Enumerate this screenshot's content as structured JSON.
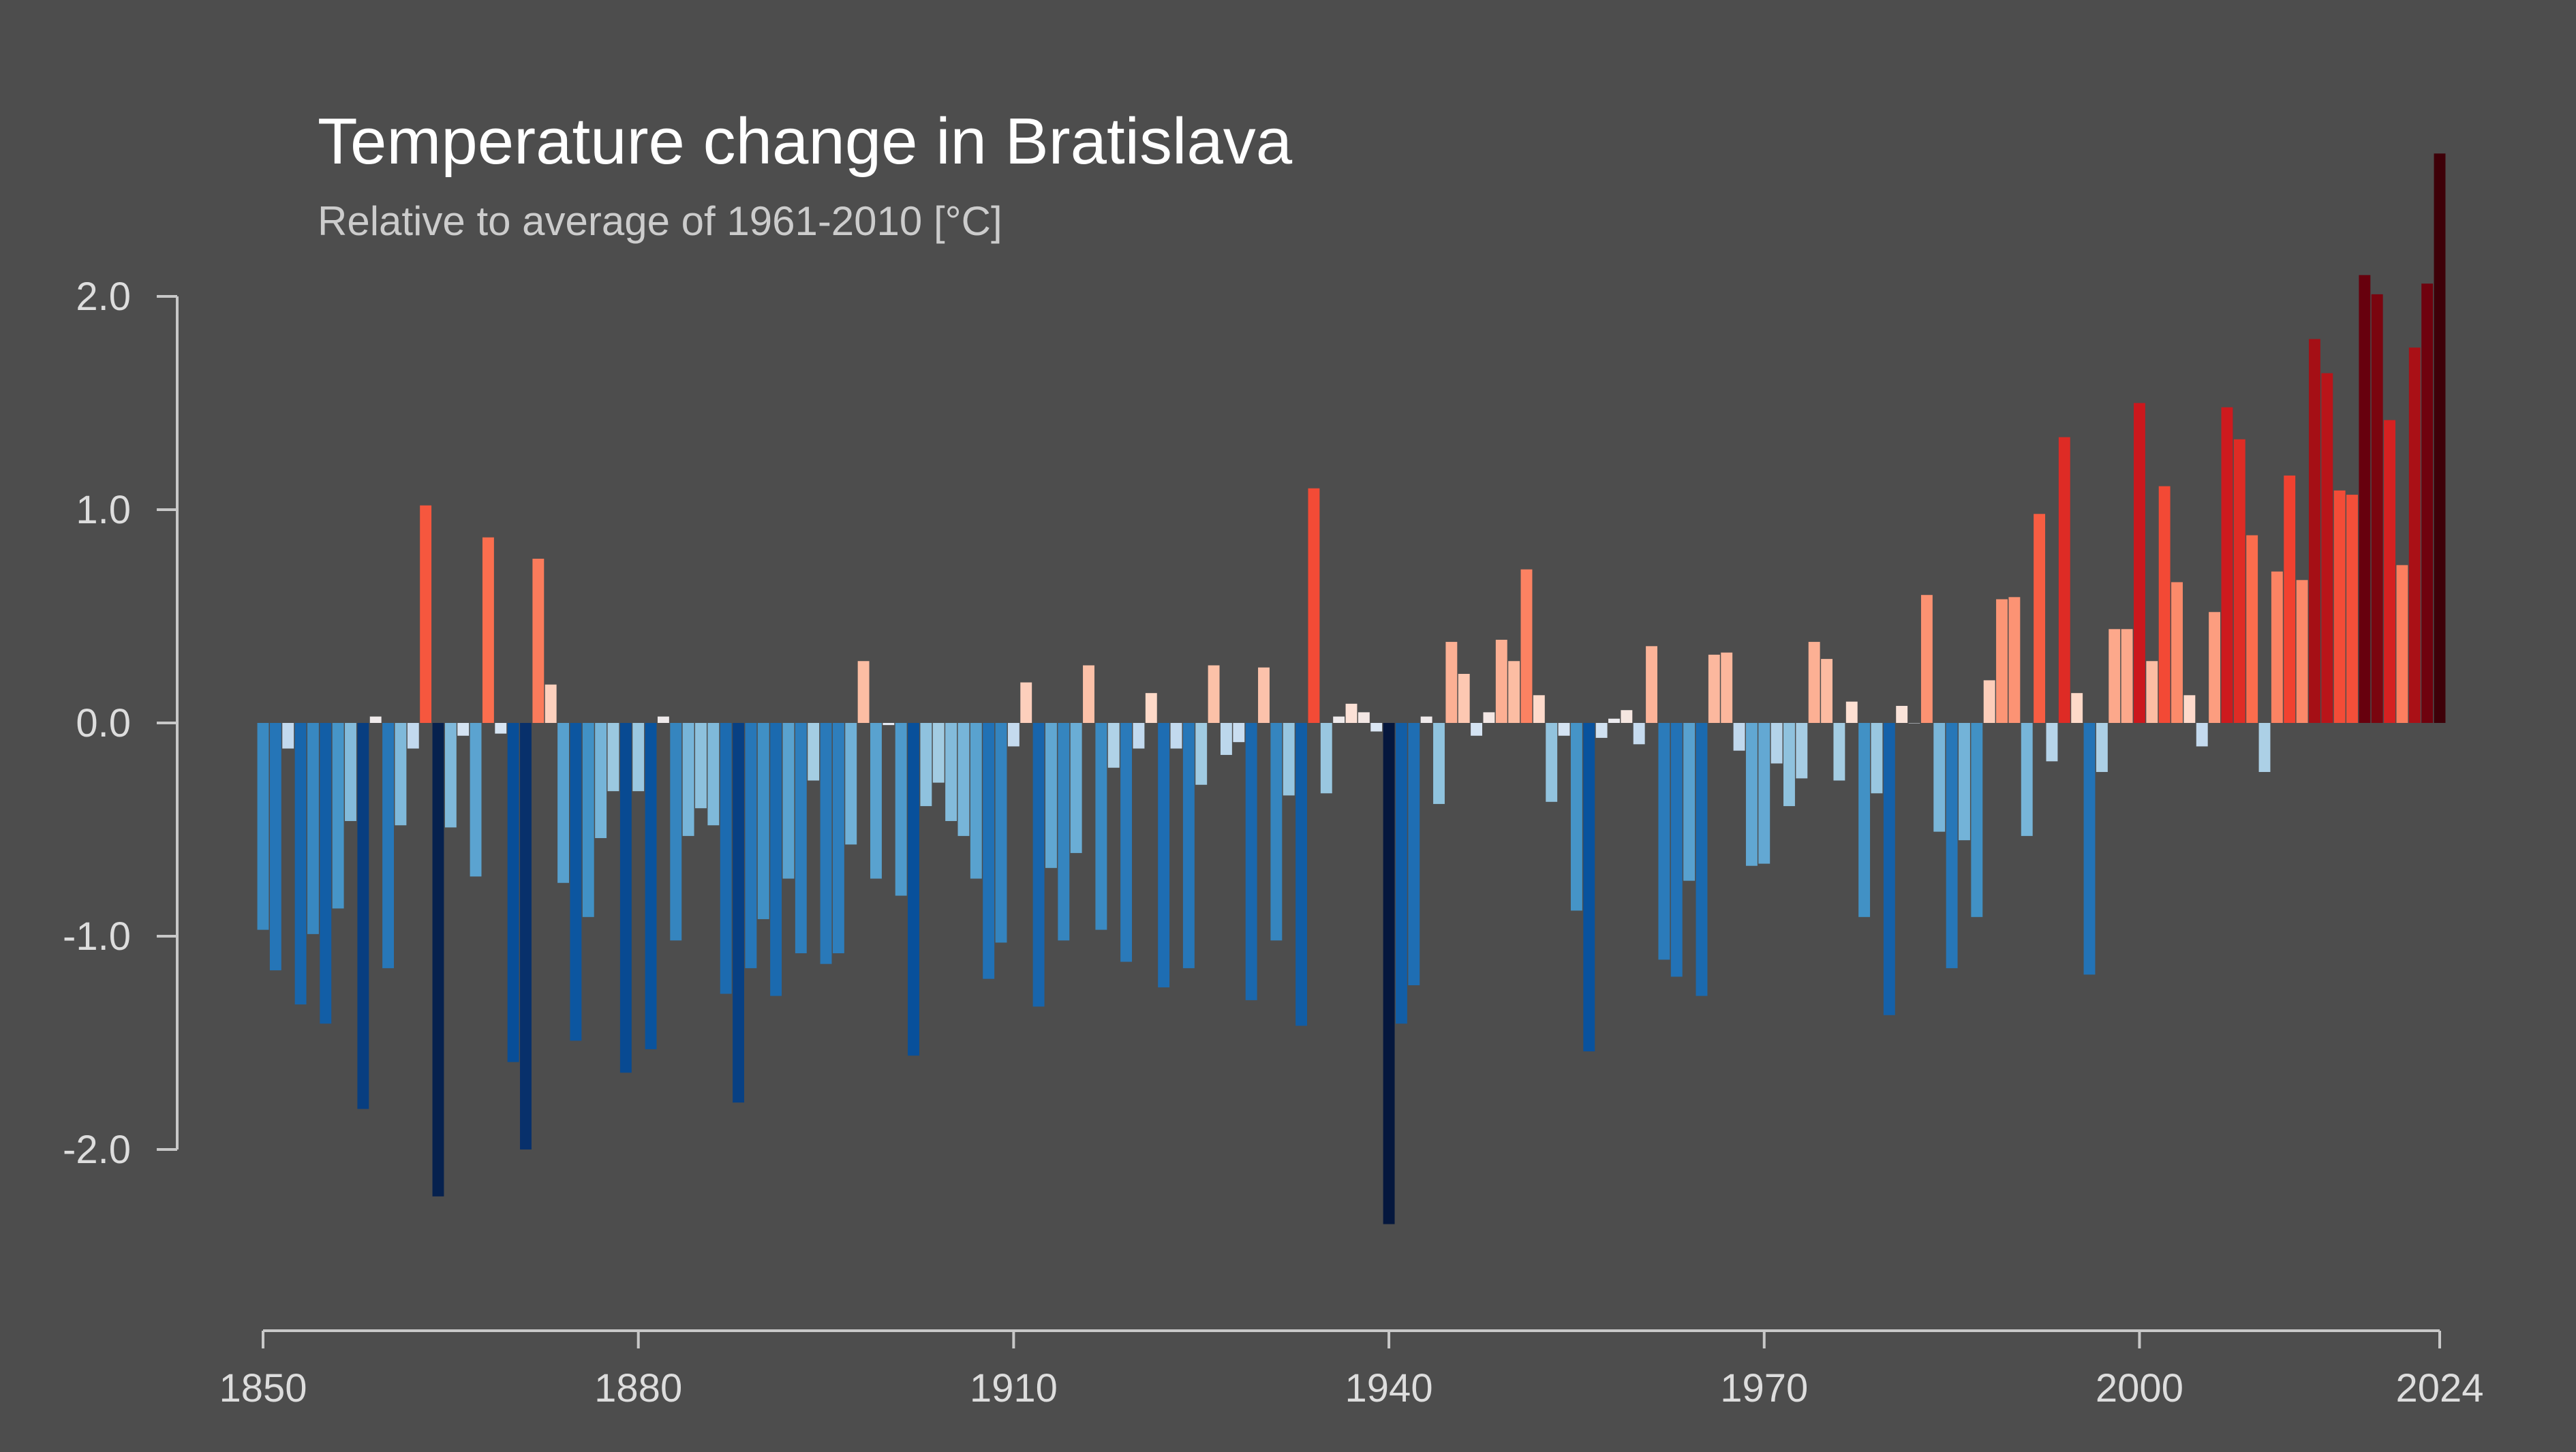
{
  "colors": {
    "background": "#4d4d4d",
    "axis": "#c8c8c8",
    "title": "#ffffff",
    "subtitle": "#cccccc",
    "tick_text": "#dddddd"
  },
  "chart_data": {
    "type": "bar",
    "title": "Temperature change in Bratislava",
    "subtitle": "Relative to average of 1961-2010  [°C]",
    "xlabel": "",
    "ylabel": "",
    "x_ticks": [
      "1850",
      "1880",
      "1910",
      "1940",
      "1970",
      "2000",
      "2024"
    ],
    "y_ticks": [
      "2.0",
      "1.0",
      "0.0",
      "-1.0",
      "-2.0"
    ],
    "ylim": [
      -2.9,
      2.7
    ],
    "xlim": [
      1850,
      2024
    ],
    "grid": false,
    "legend": "none",
    "color_scale": "diverging blue-white-red (ColorBrewer RdBu), darker blue = colder, darker red = warmer",
    "years": [
      1850,
      1851,
      1852,
      1853,
      1854,
      1855,
      1856,
      1857,
      1858,
      1859,
      1860,
      1861,
      1862,
      1863,
      1864,
      1865,
      1866,
      1867,
      1868,
      1869,
      1870,
      1871,
      1872,
      1873,
      1874,
      1875,
      1876,
      1877,
      1878,
      1879,
      1880,
      1881,
      1882,
      1883,
      1884,
      1885,
      1886,
      1887,
      1888,
      1889,
      1890,
      1891,
      1892,
      1893,
      1894,
      1895,
      1896,
      1897,
      1898,
      1899,
      1900,
      1901,
      1902,
      1903,
      1904,
      1905,
      1906,
      1907,
      1908,
      1909,
      1910,
      1911,
      1912,
      1913,
      1914,
      1915,
      1916,
      1917,
      1918,
      1919,
      1920,
      1921,
      1922,
      1923,
      1924,
      1925,
      1926,
      1927,
      1928,
      1929,
      1930,
      1931,
      1932,
      1933,
      1934,
      1935,
      1936,
      1937,
      1938,
      1939,
      1940,
      1941,
      1942,
      1943,
      1944,
      1945,
      1946,
      1947,
      1948,
      1949,
      1950,
      1951,
      1952,
      1953,
      1954,
      1955,
      1956,
      1957,
      1958,
      1959,
      1960,
      1961,
      1962,
      1963,
      1964,
      1965,
      1966,
      1967,
      1968,
      1969,
      1970,
      1971,
      1972,
      1973,
      1974,
      1975,
      1976,
      1977,
      1978,
      1979,
      1980,
      1981,
      1982,
      1983,
      1984,
      1985,
      1986,
      1987,
      1988,
      1989,
      1990,
      1991,
      1992,
      1993,
      1994,
      1995,
      1996,
      1997,
      1998,
      1999,
      2000,
      2001,
      2002,
      2003,
      2004,
      2005,
      2006,
      2007,
      2008,
      2009,
      2010,
      2011,
      2012,
      2013,
      2014,
      2015,
      2016,
      2017,
      2018,
      2019,
      2020,
      2021,
      2022,
      2023,
      2024
    ],
    "values": [
      -0.97,
      -1.16,
      -0.12,
      -1.32,
      -0.99,
      -1.41,
      -0.87,
      -0.46,
      -1.81,
      0.03,
      -1.15,
      -0.48,
      -0.12,
      1.02,
      -2.22,
      -0.49,
      -0.06,
      -0.72,
      0.87,
      -0.05,
      -1.59,
      -2.0,
      0.77,
      0.18,
      -0.75,
      -1.49,
      -0.91,
      -0.54,
      -0.32,
      -1.64,
      -0.32,
      -1.53,
      0.03,
      -1.02,
      -0.53,
      -0.4,
      -0.48,
      -1.27,
      -1.78,
      -1.15,
      -0.92,
      -1.28,
      -0.73,
      -1.08,
      -0.27,
      -1.13,
      -1.08,
      -0.57,
      0.29,
      -0.73,
      -0.01,
      -0.81,
      -1.56,
      -0.39,
      -0.28,
      -0.46,
      -0.53,
      -0.73,
      -1.2,
      -1.03,
      -0.11,
      0.19,
      -1.33,
      -0.68,
      -1.02,
      -0.61,
      0.27,
      -0.97,
      -0.21,
      -1.12,
      -0.12,
      0.14,
      -1.24,
      -0.12,
      -1.15,
      -0.29,
      0.27,
      -0.15,
      -0.09,
      -1.3,
      0.26,
      -1.02,
      -0.34,
      -1.42,
      1.1,
      -0.33,
      0.03,
      0.09,
      0.05,
      -0.04,
      -2.35,
      -1.41,
      -1.23,
      0.03,
      -0.38,
      0.38,
      0.23,
      -0.06,
      0.05,
      0.39,
      0.29,
      0.72,
      0.13,
      -0.37,
      -0.06,
      -0.88,
      -1.54,
      -0.07,
      0.02,
      0.06,
      -0.1,
      0.36,
      -1.11,
      -1.19,
      -0.74,
      -1.28,
      0.32,
      0.33,
      -0.13,
      -0.67,
      -0.66,
      -0.19,
      -0.39,
      -0.26,
      0.38,
      0.3,
      -0.27,
      0.1,
      -0.91,
      -0.33,
      -1.37,
      0.08,
      0,
      0.6,
      -0.51,
      -1.15,
      -0.55,
      -0.91,
      0.2,
      0.58,
      0.59,
      -0.53,
      0.98,
      -0.18,
      1.34,
      0.14,
      -1.18,
      -0.23,
      0.44,
      0.44,
      1.5,
      0.29,
      1.11,
      0.66,
      0.13,
      -0.11,
      0.52,
      1.48,
      1.33,
      0.88,
      -0.23,
      0.71,
      1.16,
      0.67,
      1.8,
      1.64,
      1.09,
      1.07,
      2.1,
      2.01,
      1.42,
      0.74,
      1.76,
      2.06,
      2.67
    ]
  }
}
